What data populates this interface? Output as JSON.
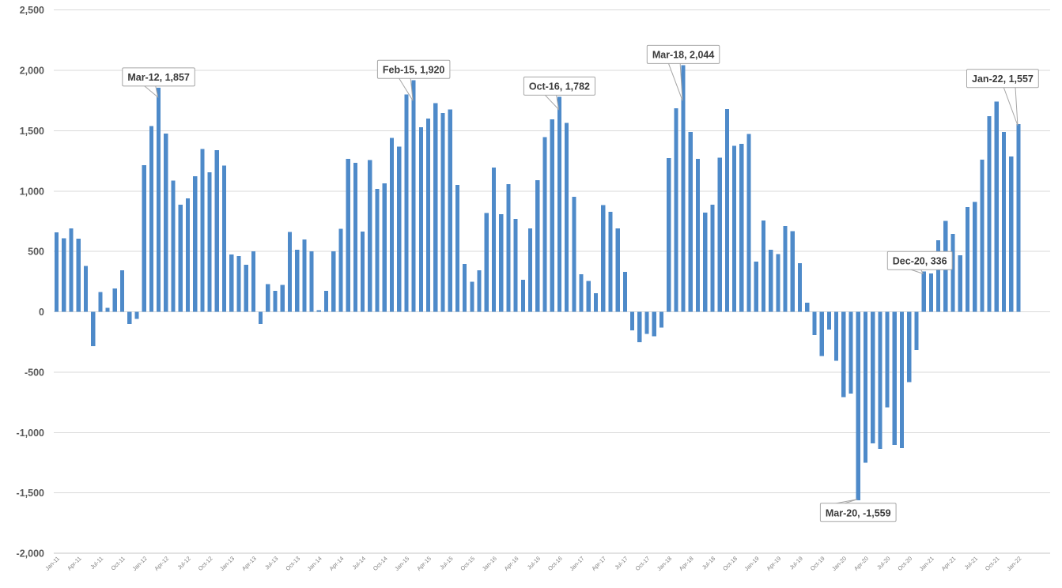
{
  "chart_data": {
    "type": "bar",
    "title": "",
    "legend": "none",
    "grid": "horizontal",
    "y_axis": {
      "min": -2000,
      "max": 2500,
      "step": 500
    },
    "x_tick_every": 3,
    "categories_unit": "month",
    "months": [
      [
        "Jan-11",
        660
      ],
      [
        "Feb-11",
        610
      ],
      [
        "Mar-11",
        690
      ],
      [
        "Apr-11",
        605
      ],
      [
        "May-11",
        380
      ],
      [
        "Jun-11",
        -285
      ],
      [
        "Jul-11",
        165
      ],
      [
        "Aug-11",
        35
      ],
      [
        "Sep-11",
        195
      ],
      [
        "Oct-11",
        345
      ],
      [
        "Nov-11",
        -100
      ],
      [
        "Dec-11",
        -57
      ],
      [
        "Jan-12",
        1215
      ],
      [
        "Feb-12",
        1540
      ],
      [
        "Mar-12",
        1857
      ],
      [
        "Apr-12",
        1478
      ],
      [
        "May-12",
        1088
      ],
      [
        "Jun-12",
        888
      ],
      [
        "Jul-12",
        940
      ],
      [
        "Aug-12",
        1124
      ],
      [
        "Sep-12",
        1350
      ],
      [
        "Oct-12",
        1157
      ],
      [
        "Nov-12",
        1338
      ],
      [
        "Dec-12",
        1212
      ],
      [
        "Jan-13",
        475
      ],
      [
        "Feb-13",
        463
      ],
      [
        "Mar-13",
        390
      ],
      [
        "Apr-13",
        500
      ],
      [
        "May-13",
        -100
      ],
      [
        "Jun-13",
        230
      ],
      [
        "Jul-13",
        175
      ],
      [
        "Aug-13",
        222
      ],
      [
        "Sep-13",
        662
      ],
      [
        "Oct-13",
        513
      ],
      [
        "Nov-13",
        600
      ],
      [
        "Dec-13",
        502
      ],
      [
        "Jan-14",
        15
      ],
      [
        "Feb-14",
        175
      ],
      [
        "Mar-14",
        502
      ],
      [
        "Apr-14",
        688
      ],
      [
        "May-14",
        1266
      ],
      [
        "Jun-14",
        1234
      ],
      [
        "Jul-14",
        666
      ],
      [
        "Aug-14",
        1258
      ],
      [
        "Sep-14",
        1020
      ],
      [
        "Oct-14",
        1063
      ],
      [
        "Nov-14",
        1441
      ],
      [
        "Dec-14",
        1370
      ],
      [
        "Jan-15",
        1801
      ],
      [
        "Feb-15",
        1920
      ],
      [
        "Mar-15",
        1528
      ],
      [
        "Apr-15",
        1600
      ],
      [
        "May-15",
        1729
      ],
      [
        "Jun-15",
        1648
      ],
      [
        "Jul-15",
        1675
      ],
      [
        "Aug-15",
        1052
      ],
      [
        "Sep-15",
        397
      ],
      [
        "Oct-15",
        251
      ],
      [
        "Nov-15",
        345
      ],
      [
        "Dec-15",
        819
      ],
      [
        "Jan-16",
        1194
      ],
      [
        "Feb-16",
        808
      ],
      [
        "Mar-16",
        1059
      ],
      [
        "Apr-16",
        771
      ],
      [
        "May-16",
        266
      ],
      [
        "Jun-16",
        692
      ],
      [
        "Jul-16",
        1092
      ],
      [
        "Aug-16",
        1448
      ],
      [
        "Sep-16",
        1594
      ],
      [
        "Oct-16",
        1782
      ],
      [
        "Nov-16",
        1566
      ],
      [
        "Dec-16",
        954
      ],
      [
        "Jan-17",
        312
      ],
      [
        "Feb-17",
        255
      ],
      [
        "Mar-17",
        153
      ],
      [
        "Apr-17",
        884
      ],
      [
        "May-17",
        830
      ],
      [
        "Jun-17",
        692
      ],
      [
        "Jul-17",
        332
      ],
      [
        "Aug-17",
        -153
      ],
      [
        "Sep-17",
        -251
      ],
      [
        "Oct-17",
        -181
      ],
      [
        "Nov-17",
        -203
      ],
      [
        "Dec-17",
        -131
      ],
      [
        "Jan-18",
        1273
      ],
      [
        "Feb-18",
        1686
      ],
      [
        "Mar-18",
        2044
      ],
      [
        "Apr-18",
        1491
      ],
      [
        "May-18",
        1266
      ],
      [
        "Jun-18",
        823
      ],
      [
        "Jul-18",
        888
      ],
      [
        "Aug-18",
        1277
      ],
      [
        "Sep-18",
        1681
      ],
      [
        "Oct-18",
        1376
      ],
      [
        "Nov-18",
        1393
      ],
      [
        "Dec-18",
        1474
      ],
      [
        "Jan-19",
        415
      ],
      [
        "Feb-19",
        758
      ],
      [
        "Mar-19",
        513
      ],
      [
        "Apr-19",
        480
      ],
      [
        "May-19",
        710
      ],
      [
        "Jun-19",
        670
      ],
      [
        "Jul-19",
        404
      ],
      [
        "Aug-19",
        76
      ],
      [
        "Sep-19",
        -192
      ],
      [
        "Oct-19",
        -367
      ],
      [
        "Nov-19",
        -146
      ],
      [
        "Dec-19",
        -404
      ],
      [
        "Jan-20",
        -705
      ],
      [
        "Feb-20",
        -677
      ],
      [
        "Mar-20",
        -1559
      ],
      [
        "Apr-20",
        -1251
      ],
      [
        "May-20",
        -1090
      ],
      [
        "Jun-20",
        -1135
      ],
      [
        "Jul-20",
        -793
      ],
      [
        "Aug-20",
        -1103
      ],
      [
        "Sep-20",
        -1129
      ],
      [
        "Oct-20",
        -583
      ],
      [
        "Nov-20",
        -317
      ],
      [
        "Dec-20",
        336
      ],
      [
        "Jan-21",
        317
      ],
      [
        "Feb-21",
        594
      ],
      [
        "Mar-21",
        753
      ],
      [
        "Apr-21",
        644
      ],
      [
        "May-21",
        469
      ],
      [
        "Jun-21",
        869
      ],
      [
        "Jul-21",
        911
      ],
      [
        "Aug-21",
        1260
      ],
      [
        "Sep-21",
        1622
      ],
      [
        "Oct-21",
        1742
      ],
      [
        "Nov-21",
        1491
      ],
      [
        "Dec-21",
        1288
      ],
      [
        "Jan-22",
        1557
      ]
    ],
    "annotations": [
      {
        "month": "Mar-12",
        "text": "Mar-12, 1,857"
      },
      {
        "month": "Feb-15",
        "text": "Feb-15, 1,920"
      },
      {
        "month": "Oct-16",
        "text": "Oct-16, 1,782"
      },
      {
        "month": "Mar-18",
        "text": "Mar-18, 2,044"
      },
      {
        "month": "Dec-20",
        "text": "Dec-20, 336"
      },
      {
        "month": "Jan-22",
        "text": "Jan-22, 1,557"
      },
      {
        "month": "Mar-20",
        "text": "Mar-20, -1,559"
      }
    ],
    "colors": {
      "bar": "#4E8AC9",
      "gridline": "#D9D9D9",
      "axis_line": "#C6C6C6",
      "y_label": "#595959",
      "x_label": "#7F7F7F",
      "callout_border": "#A6A6A6",
      "callout_fill": "#FFFFFF",
      "callout_text": "#3A3A3A",
      "background": "#FFFFFF"
    }
  }
}
